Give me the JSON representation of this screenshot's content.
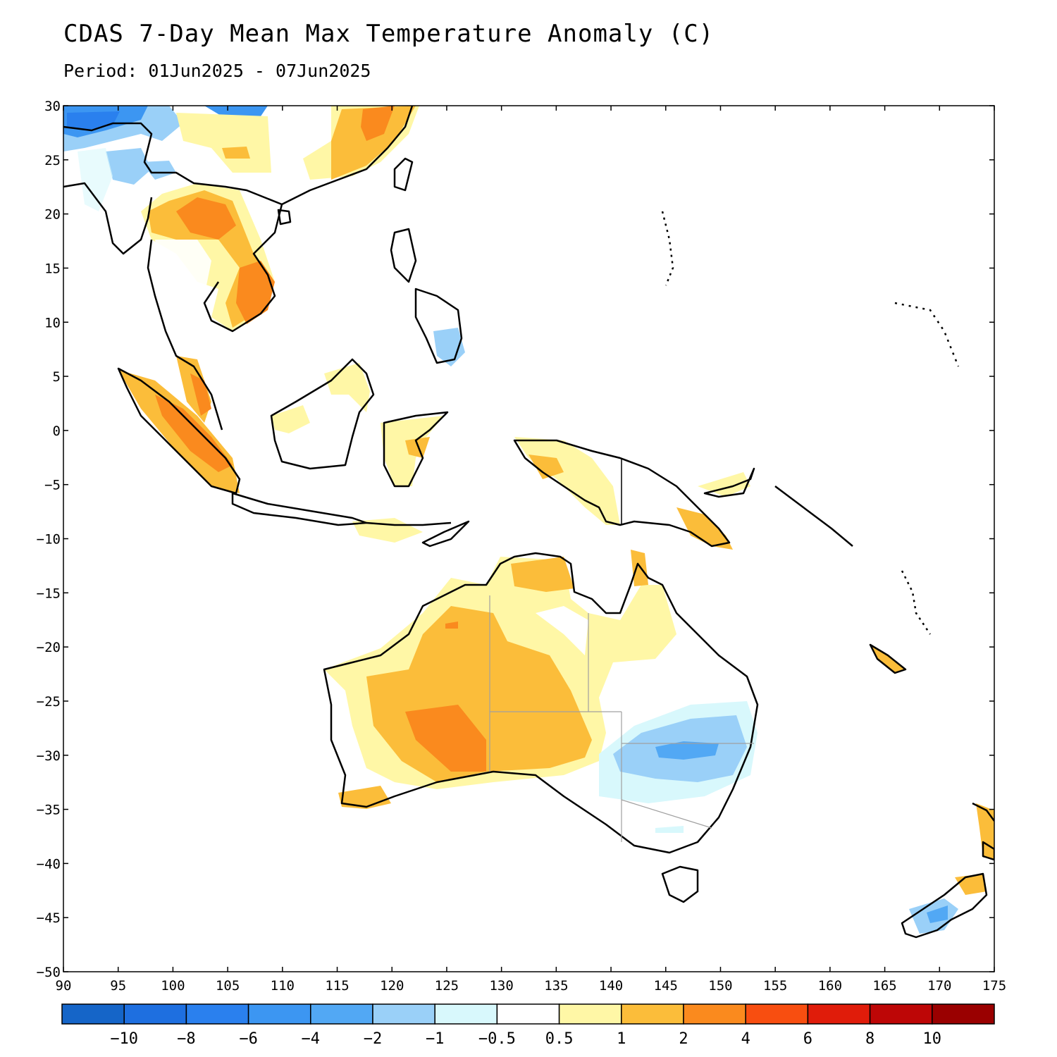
{
  "title": "CDAS 7-Day Mean Max Temperature Anomaly (C)",
  "subtitle": "Period: 01Jun2025 - 07Jun2025",
  "chart_data": {
    "type": "heatmap",
    "lon_range": [
      90,
      175
    ],
    "lat_range": [
      -50,
      30
    ],
    "x_ticks": [
      "90",
      "95",
      "100",
      "105",
      "110",
      "115",
      "120",
      "125",
      "130",
      "135",
      "140",
      "145",
      "150",
      "155",
      "160",
      "165",
      "170",
      "175"
    ],
    "y_ticks": [
      "30",
      "25",
      "20",
      "15",
      "10",
      "5",
      "0",
      "−5",
      "−10",
      "−15",
      "−20",
      "−25",
      "−30",
      "−35",
      "−40",
      "−45",
      "−50"
    ],
    "colorbar": {
      "labels": [
        "−10",
        "−8",
        "−6",
        "−4",
        "−2",
        "−1",
        "−0.5",
        "0.5",
        "1",
        "2",
        "4",
        "6",
        "8",
        "10"
      ],
      "colors": [
        "#1565c8",
        "#1e6fe0",
        "#2a80ee",
        "#3c96f2",
        "#52a8f4",
        "#9ad0f8",
        "#d8f8fc",
        "#ffffff",
        "#fff7a6",
        "#fbbd3a",
        "#fa8a1e",
        "#f84e10",
        "#e01c0a",
        "#bd0606",
        "#9a0000"
      ]
    }
  }
}
